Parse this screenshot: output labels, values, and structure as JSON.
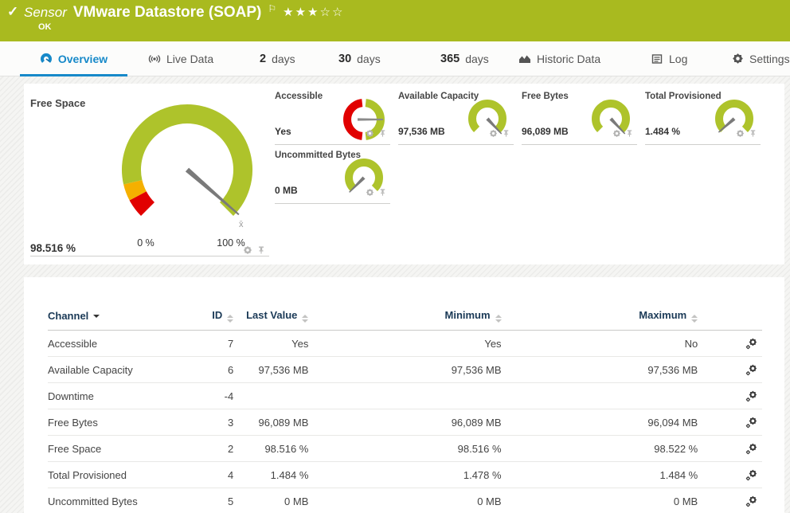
{
  "header": {
    "check_icon": "✓",
    "kind_label": "Sensor",
    "title": "VMware Datastore (SOAP)",
    "flag_icon": "⚐",
    "stars": "★★★☆☆",
    "status": "OK"
  },
  "tabs": {
    "overview": {
      "label": "Overview"
    },
    "live_data": {
      "label": "Live Data"
    },
    "days2": {
      "num": "2",
      "unit": "days"
    },
    "days30": {
      "num": "30",
      "unit": "days"
    },
    "days365": {
      "num": "365",
      "unit": "days"
    },
    "historic": {
      "label": "Historic Data"
    },
    "log": {
      "label": "Log"
    },
    "settings": {
      "label": "Settings"
    }
  },
  "gauges": {
    "primary": {
      "title": "Free Space",
      "value": "98.516 %",
      "percent": 98.516,
      "min_label": "0 %",
      "max_label": "100 %",
      "needle_deg": 41,
      "avg_marker": "x̄"
    },
    "accessible": {
      "title": "Accessible",
      "value": "Yes",
      "needle_deg": 0
    },
    "available_capacity": {
      "title": "Available Capacity",
      "value": "97,536 MB",
      "needle_deg": 47
    },
    "free_bytes": {
      "title": "Free Bytes",
      "value": "96,089 MB",
      "needle_deg": 47
    },
    "total_provisioned": {
      "title": "Total Provisioned",
      "value": "1.484 %",
      "needle_deg": 139
    },
    "uncommitted_bytes": {
      "title": "Uncommitted Bytes",
      "value": "0 MB",
      "needle_deg": 135
    }
  },
  "table": {
    "headers": {
      "channel": "Channel",
      "id": "ID",
      "last_value": "Last Value",
      "minimum": "Minimum",
      "maximum": "Maximum"
    },
    "rows": [
      {
        "channel": "Accessible",
        "id": "7",
        "last_value": "Yes",
        "minimum": "Yes",
        "maximum": "No"
      },
      {
        "channel": "Available Capacity",
        "id": "6",
        "last_value": "97,536 MB",
        "minimum": "97,536 MB",
        "maximum": "97,536 MB"
      },
      {
        "channel": "Downtime",
        "id": "-4",
        "last_value": "",
        "minimum": "",
        "maximum": ""
      },
      {
        "channel": "Free Bytes",
        "id": "3",
        "last_value": "96,089 MB",
        "minimum": "96,089 MB",
        "maximum": "96,094 MB"
      },
      {
        "channel": "Free Space",
        "id": "2",
        "last_value": "98.516 %",
        "minimum": "98.516 %",
        "maximum": "98.522 %"
      },
      {
        "channel": "Total Provisioned",
        "id": "4",
        "last_value": "1.484 %",
        "minimum": "1.478 %",
        "maximum": "1.484 %"
      },
      {
        "channel": "Uncommitted Bytes",
        "id": "5",
        "last_value": "0 MB",
        "minimum": "0 MB",
        "maximum": "0 MB"
      }
    ]
  },
  "colors": {
    "header_green": "#a9ba1f",
    "gauge_green": "#aec32b",
    "gauge_red": "#e10000",
    "gauge_yellow": "#f5b000",
    "needle_gray": "#7a7a7a",
    "tab_blue": "#1789c9"
  }
}
